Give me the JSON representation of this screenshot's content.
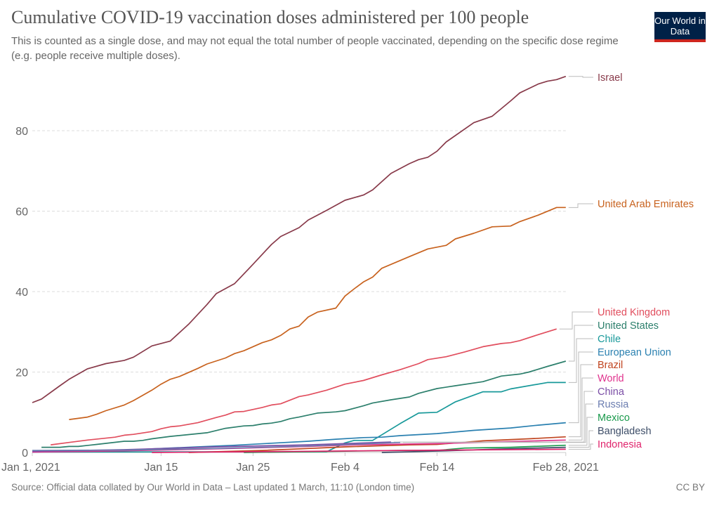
{
  "header": {
    "title": "Cumulative COVID-19 vaccination doses administered per 100 people",
    "subtitle": "This is counted as a single dose, and may not equal the total number of people vaccinated, depending on the specific dose regime (e.g. people receive multiple doses).",
    "logo_text": "Our World in Data"
  },
  "footer": {
    "source": "Source: Official data collated by Our World in Data – Last updated 1 March, 11:10 (London time)",
    "license": "CC BY"
  },
  "chart_data": {
    "type": "line",
    "title": "Cumulative COVID-19 vaccination doses administered per 100 people",
    "xlabel": "",
    "ylabel": "",
    "x_unit": "days since Jan 1, 2021",
    "xlim": [
      "2021-01-01",
      "2021-02-28"
    ],
    "ylim": [
      0,
      93.5
    ],
    "x_ticks": [
      {
        "date": "2021-01-01",
        "label": "Jan 1, 2021"
      },
      {
        "date": "2021-01-15",
        "label": "Jan 15"
      },
      {
        "date": "2021-01-25",
        "label": "Jan 25"
      },
      {
        "date": "2021-02-04",
        "label": "Feb 4"
      },
      {
        "date": "2021-02-14",
        "label": "Feb 14"
      },
      {
        "date": "2021-02-28",
        "label": "Feb 28, 2021"
      }
    ],
    "y_ticks": [
      0,
      20,
      40,
      60,
      80
    ],
    "grid": "horizontal dashed",
    "legend": "right (line-end labels)",
    "series": [
      {
        "name": "Israel",
        "color": "#883a4a",
        "points": [
          [
            "2021-01-01",
            12.4
          ],
          [
            "2021-01-02",
            13.3
          ],
          [
            "2021-01-04",
            16.6
          ],
          [
            "2021-01-05",
            18.2
          ],
          [
            "2021-01-07",
            20.8
          ],
          [
            "2021-01-09",
            22.1
          ],
          [
            "2021-01-11",
            22.9
          ],
          [
            "2021-01-12",
            23.7
          ],
          [
            "2021-01-14",
            26.5
          ],
          [
            "2021-01-16",
            27.7
          ],
          [
            "2021-01-18",
            31.9
          ],
          [
            "2021-01-20",
            36.8
          ],
          [
            "2021-01-21",
            39.5
          ],
          [
            "2021-01-23",
            42.0
          ],
          [
            "2021-01-25",
            46.8
          ],
          [
            "2021-01-27",
            51.7
          ],
          [
            "2021-01-28",
            53.7
          ],
          [
            "2021-01-30",
            55.9
          ],
          [
            "2021-01-31",
            57.8
          ],
          [
            "2021-02-02",
            60.2
          ],
          [
            "2021-02-04",
            62.7
          ],
          [
            "2021-02-06",
            64.0
          ],
          [
            "2021-02-07",
            65.3
          ],
          [
            "2021-02-09",
            69.4
          ],
          [
            "2021-02-11",
            71.8
          ],
          [
            "2021-02-12",
            72.8
          ],
          [
            "2021-02-13",
            73.4
          ],
          [
            "2021-02-14",
            74.9
          ],
          [
            "2021-02-15",
            77.2
          ],
          [
            "2021-02-18",
            82.0
          ],
          [
            "2021-02-20",
            83.6
          ],
          [
            "2021-02-22",
            87.4
          ],
          [
            "2021-02-23",
            89.4
          ],
          [
            "2021-02-25",
            91.6
          ],
          [
            "2021-02-26",
            92.3
          ],
          [
            "2021-02-27",
            92.7
          ],
          [
            "2021-02-28",
            93.5
          ]
        ]
      },
      {
        "name": "United Arab Emirates",
        "color": "#c8621e",
        "points": [
          [
            "2021-01-05",
            8.2
          ],
          [
            "2021-01-07",
            8.8
          ],
          [
            "2021-01-08",
            9.5
          ],
          [
            "2021-01-09",
            10.4
          ],
          [
            "2021-01-11",
            11.8
          ],
          [
            "2021-01-12",
            12.9
          ],
          [
            "2021-01-14",
            15.5
          ],
          [
            "2021-01-15",
            17.0
          ],
          [
            "2021-01-16",
            18.2
          ],
          [
            "2021-01-17",
            18.9
          ],
          [
            "2021-01-19",
            20.9
          ],
          [
            "2021-01-20",
            22.0
          ],
          [
            "2021-01-22",
            23.5
          ],
          [
            "2021-01-23",
            24.6
          ],
          [
            "2021-01-24",
            25.3
          ],
          [
            "2021-01-26",
            27.3
          ],
          [
            "2021-01-27",
            28.0
          ],
          [
            "2021-01-28",
            29.1
          ],
          [
            "2021-01-29",
            30.7
          ],
          [
            "2021-01-30",
            31.4
          ],
          [
            "2021-01-31",
            33.7
          ],
          [
            "2021-02-01",
            34.9
          ],
          [
            "2021-02-03",
            35.9
          ],
          [
            "2021-02-04",
            38.9
          ],
          [
            "2021-02-05",
            40.7
          ],
          [
            "2021-02-06",
            42.4
          ],
          [
            "2021-02-07",
            43.6
          ],
          [
            "2021-02-08",
            45.8
          ],
          [
            "2021-02-11",
            48.7
          ],
          [
            "2021-02-13",
            50.6
          ],
          [
            "2021-02-15",
            51.5
          ],
          [
            "2021-02-16",
            53.1
          ],
          [
            "2021-02-18",
            54.5
          ],
          [
            "2021-02-20",
            56.1
          ],
          [
            "2021-02-22",
            56.3
          ],
          [
            "2021-02-23",
            57.4
          ],
          [
            "2021-02-25",
            59.0
          ],
          [
            "2021-02-27",
            60.9
          ],
          [
            "2021-02-28",
            60.9
          ]
        ]
      },
      {
        "name": "United Kingdom",
        "color": "#e14e5e",
        "points": [
          [
            "2021-01-03",
            1.9
          ],
          [
            "2021-01-05",
            2.5
          ],
          [
            "2021-01-07",
            3.1
          ],
          [
            "2021-01-10",
            3.8
          ],
          [
            "2021-01-11",
            4.3
          ],
          [
            "2021-01-12",
            4.5
          ],
          [
            "2021-01-14",
            5.2
          ],
          [
            "2021-01-15",
            5.9
          ],
          [
            "2021-01-16",
            6.4
          ],
          [
            "2021-01-17",
            6.6
          ],
          [
            "2021-01-19",
            7.4
          ],
          [
            "2021-01-21",
            8.7
          ],
          [
            "2021-01-22",
            9.3
          ],
          [
            "2021-01-23",
            10.1
          ],
          [
            "2021-01-24",
            10.2
          ],
          [
            "2021-01-26",
            11.2
          ],
          [
            "2021-01-27",
            11.8
          ],
          [
            "2021-01-28",
            12.1
          ],
          [
            "2021-01-30",
            13.9
          ],
          [
            "2021-01-31",
            14.3
          ],
          [
            "2021-02-02",
            15.5
          ],
          [
            "2021-02-04",
            17.0
          ],
          [
            "2021-02-06",
            17.9
          ],
          [
            "2021-02-08",
            19.3
          ],
          [
            "2021-02-10",
            20.6
          ],
          [
            "2021-02-12",
            22.1
          ],
          [
            "2021-02-13",
            23.1
          ],
          [
            "2021-02-15",
            23.8
          ],
          [
            "2021-02-17",
            25.0
          ],
          [
            "2021-02-19",
            26.3
          ],
          [
            "2021-02-21",
            27.1
          ],
          [
            "2021-02-22",
            27.3
          ],
          [
            "2021-02-23",
            27.8
          ],
          [
            "2021-02-25",
            29.3
          ],
          [
            "2021-02-27",
            30.7
          ]
        ]
      },
      {
        "name": "United States",
        "color": "#2c7f6c",
        "points": [
          [
            "2021-01-02",
            1.3
          ],
          [
            "2021-01-04",
            1.3
          ],
          [
            "2021-01-05",
            1.5
          ],
          [
            "2021-01-06",
            1.5
          ],
          [
            "2021-01-08",
            2.0
          ],
          [
            "2021-01-11",
            2.8
          ],
          [
            "2021-01-12",
            2.8
          ],
          [
            "2021-01-13",
            3.0
          ],
          [
            "2021-01-14",
            3.4
          ],
          [
            "2021-01-16",
            4.0
          ],
          [
            "2021-01-20",
            4.9
          ],
          [
            "2021-01-22",
            6.0
          ],
          [
            "2021-01-24",
            6.6
          ],
          [
            "2021-01-25",
            6.7
          ],
          [
            "2021-01-26",
            7.1
          ],
          [
            "2021-01-27",
            7.3
          ],
          [
            "2021-01-28",
            7.7
          ],
          [
            "2021-01-29",
            8.4
          ],
          [
            "2021-01-30",
            8.8
          ],
          [
            "2021-02-01",
            9.8
          ],
          [
            "2021-02-03",
            10.1
          ],
          [
            "2021-02-04",
            10.4
          ],
          [
            "2021-02-06",
            11.6
          ],
          [
            "2021-02-07",
            12.3
          ],
          [
            "2021-02-09",
            13.1
          ],
          [
            "2021-02-11",
            13.8
          ],
          [
            "2021-02-12",
            14.7
          ],
          [
            "2021-02-14",
            15.9
          ],
          [
            "2021-02-16",
            16.6
          ],
          [
            "2021-02-19",
            17.6
          ],
          [
            "2021-02-21",
            19.0
          ],
          [
            "2021-02-23",
            19.5
          ],
          [
            "2021-02-24",
            20.0
          ],
          [
            "2021-02-26",
            21.4
          ],
          [
            "2021-02-28",
            22.7
          ]
        ]
      },
      {
        "name": "Chile",
        "color": "#18999a",
        "points": [
          [
            "2021-01-01",
            0.1
          ],
          [
            "2021-02-02",
            0.2
          ],
          [
            "2021-02-04",
            2.4
          ],
          [
            "2021-02-05",
            3.0
          ],
          [
            "2021-02-07",
            3.0
          ],
          [
            "2021-02-10",
            7.2
          ],
          [
            "2021-02-12",
            9.8
          ],
          [
            "2021-02-14",
            10.0
          ],
          [
            "2021-02-16",
            12.6
          ],
          [
            "2021-02-19",
            15.1
          ],
          [
            "2021-02-21",
            15.1
          ],
          [
            "2021-02-22",
            15.8
          ],
          [
            "2021-02-26",
            17.4
          ],
          [
            "2021-02-28",
            17.4
          ]
        ]
      },
      {
        "name": "European Union",
        "color": "#2a80b0",
        "points": [
          [
            "2021-01-01",
            0.1
          ],
          [
            "2021-01-11",
            0.5
          ],
          [
            "2021-01-14",
            0.9
          ],
          [
            "2021-01-19",
            1.4
          ],
          [
            "2021-01-23",
            1.8
          ],
          [
            "2021-01-27",
            2.3
          ],
          [
            "2021-01-31",
            2.8
          ],
          [
            "2021-02-03",
            3.3
          ],
          [
            "2021-02-06",
            3.7
          ],
          [
            "2021-02-08",
            3.8
          ],
          [
            "2021-02-10",
            4.2
          ],
          [
            "2021-02-14",
            4.7
          ],
          [
            "2021-02-18",
            5.5
          ],
          [
            "2021-02-22",
            6.1
          ],
          [
            "2021-02-25",
            6.8
          ],
          [
            "2021-02-28",
            7.4
          ]
        ]
      },
      {
        "name": "Brazil",
        "color": "#c0441f",
        "points": [
          [
            "2021-01-18",
            0.0
          ],
          [
            "2021-01-26",
            0.5
          ],
          [
            "2021-01-31",
            1.0
          ],
          [
            "2021-02-04",
            1.4
          ],
          [
            "2021-02-11",
            1.9
          ],
          [
            "2021-02-14",
            2.0
          ],
          [
            "2021-02-19",
            2.9
          ],
          [
            "2021-02-24",
            3.4
          ],
          [
            "2021-02-28",
            3.9
          ]
        ]
      },
      {
        "name": "World",
        "color": "#e0338e",
        "points": [
          [
            "2021-01-01",
            0.1
          ],
          [
            "2021-01-11",
            0.4
          ],
          [
            "2021-01-21",
            0.9
          ],
          [
            "2021-01-31",
            1.5
          ],
          [
            "2021-02-05",
            1.9
          ],
          [
            "2021-02-14",
            2.2
          ],
          [
            "2021-02-20",
            2.6
          ],
          [
            "2021-02-28",
            3.1
          ]
        ]
      },
      {
        "name": "China",
        "color": "#7b4ea6",
        "points": [
          [
            "2021-01-01",
            0.3
          ],
          [
            "2021-01-11",
            0.7
          ],
          [
            "2021-01-21",
            1.4
          ],
          [
            "2021-01-31",
            1.9
          ],
          [
            "2021-02-09",
            2.6
          ]
        ]
      },
      {
        "name": "Russia",
        "color": "#6b7db0",
        "points": [
          [
            "2021-01-01",
            0.5
          ],
          [
            "2021-01-11",
            0.6
          ],
          [
            "2021-01-21",
            1.0
          ],
          [
            "2021-01-31",
            1.6
          ],
          [
            "2021-02-10",
            2.5
          ]
        ]
      },
      {
        "name": "Mexico",
        "color": "#1a9a4c",
        "points": [
          [
            "2021-01-24",
            0.0
          ],
          [
            "2021-01-31",
            0.2
          ],
          [
            "2021-02-10",
            0.5
          ],
          [
            "2021-02-14",
            0.5
          ],
          [
            "2021-02-17",
            1.1
          ],
          [
            "2021-02-22",
            1.3
          ],
          [
            "2021-02-28",
            1.8
          ]
        ]
      },
      {
        "name": "Bangladesh",
        "color": "#3e4e68",
        "points": [
          [
            "2021-02-08",
            0.0
          ],
          [
            "2021-02-15",
            0.4
          ],
          [
            "2021-02-20",
            0.8
          ],
          [
            "2021-02-28",
            1.3
          ]
        ]
      },
      {
        "name": "Indonesia",
        "color": "#e0246c",
        "points": [
          [
            "2021-01-14",
            0.0
          ],
          [
            "2021-01-31",
            0.3
          ],
          [
            "2021-02-10",
            0.5
          ],
          [
            "2021-02-28",
            0.8
          ]
        ]
      }
    ]
  }
}
